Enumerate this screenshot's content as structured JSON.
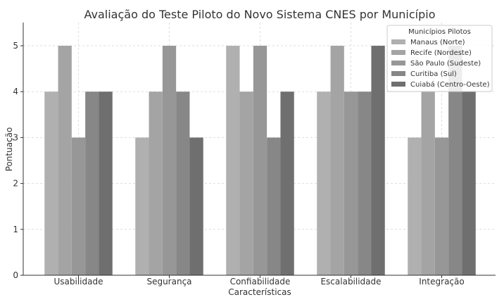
{
  "chart_data": {
    "type": "bar",
    "title": "Avaliação do Teste Piloto do Novo Sistema CNES por Município",
    "xlabel": "Características",
    "ylabel": "Pontuação",
    "categories": [
      "Usabilidade",
      "Segurança",
      "Confiabilidade",
      "Escalabilidade",
      "Integração"
    ],
    "yticks": [
      "0",
      "1",
      "2",
      "3",
      "4",
      "5"
    ],
    "ylim": [
      0,
      5.5
    ],
    "grid": true,
    "legend": {
      "title": "Municípios Pilotos",
      "position": "top-right"
    },
    "series": [
      {
        "name": "Manaus (Norte)",
        "color": "#b0b0b0",
        "values": [
          4,
          3,
          5,
          4,
          3
        ]
      },
      {
        "name": "Recife (Nordeste)",
        "color": "#a4a4a4",
        "values": [
          5,
          4,
          4,
          5,
          4
        ]
      },
      {
        "name": "São Paulo (Sudeste)",
        "color": "#979797",
        "values": [
          3,
          5,
          5,
          4,
          3
        ]
      },
      {
        "name": "Curitiba (Sul)",
        "color": "#878787",
        "values": [
          4,
          4,
          3,
          4,
          5
        ]
      },
      {
        "name": "Cuiabá (Centro-Oeste)",
        "color": "#6f6f6f",
        "values": [
          4,
          3,
          4,
          5,
          4
        ]
      }
    ]
  }
}
